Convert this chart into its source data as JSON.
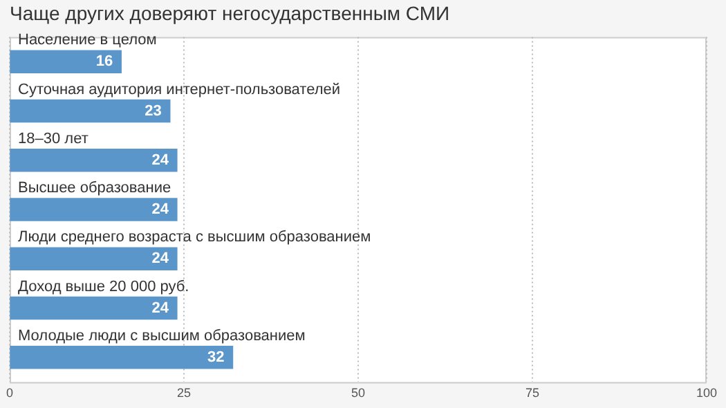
{
  "chart_data": {
    "type": "bar",
    "orientation": "horizontal",
    "title": "Чаще других доверяют негосударственным СМИ",
    "categories": [
      "Население в целом",
      "Суточная аудитория интернет-пользователей",
      "18–30 лет",
      "Высшее образование",
      "Люди среднего возраста с высшим образованием",
      "Доход выше 20 000 руб.",
      "Молодые люди с высшим образованием"
    ],
    "values": [
      16,
      23,
      24,
      24,
      24,
      24,
      32
    ],
    "color": "#5b96cb",
    "xlim": [
      0,
      100
    ],
    "xticks": [
      0,
      25,
      50,
      75,
      100
    ],
    "grid": "x",
    "data_labels": true,
    "legend": false
  }
}
